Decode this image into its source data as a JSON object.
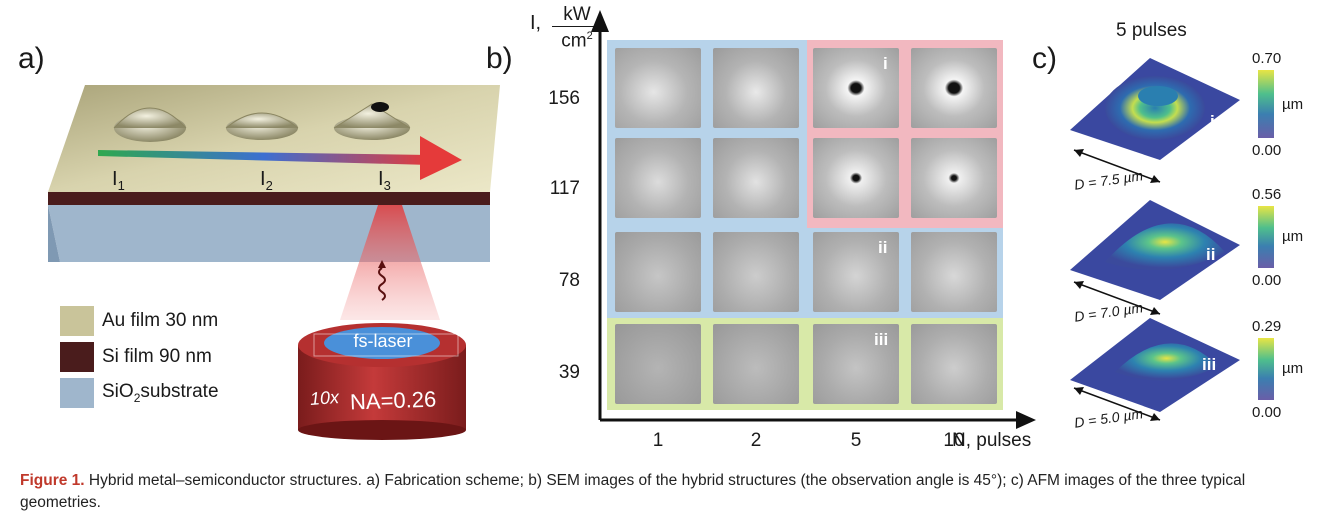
{
  "panel_a": {
    "label": "a)",
    "intensity_labels": [
      "I",
      "I",
      "I"
    ],
    "intensity_subs": [
      "1",
      "2",
      "3"
    ],
    "legend": [
      {
        "text": "Au film 30 nm",
        "color": "#c9c49a"
      },
      {
        "text": "Si film 90 nm",
        "color": "#4a1c1c"
      },
      {
        "text_main": "SiO",
        "text_sub": "2",
        "text_rest": "substrate",
        "color": "#9fb6cc"
      }
    ],
    "objective_top": "fs-laser",
    "objective_mag": "10x",
    "objective_na": "NA=0.26"
  },
  "panel_b": {
    "label": "b)",
    "y_axis_label_I": "I,",
    "y_axis_unit_num": "kW",
    "y_axis_unit_den": "cm",
    "y_axis_unit_exp": "2",
    "y_ticks": [
      "156",
      "117",
      "78",
      "39"
    ],
    "x_ticks": [
      "1",
      "2",
      "5",
      "10"
    ],
    "x_axis_label": "N, pulses",
    "region_colors": {
      "blue": "#b7d3ea",
      "pink": "#f2b8c0",
      "green": "#d8e9a8"
    },
    "markers": {
      "i": "i",
      "ii": "ii",
      "iii": "iii"
    }
  },
  "panel_c": {
    "label": "c)",
    "title": "5 pulses",
    "unit": "µm",
    "maps": [
      {
        "marker": "i",
        "max": "0.70",
        "min": "0.00",
        "diameter": "D = 7.5 µm"
      },
      {
        "marker": "ii",
        "max": "0.56",
        "min": "0.00",
        "diameter": "D = 7.0 µm"
      },
      {
        "marker": "iii",
        "max": "0.29",
        "min": "0.00",
        "diameter": "D = 5.0 µm"
      }
    ]
  },
  "caption": {
    "figure_label": "Figure 1.",
    "text": " Hybrid metal–semiconductor structures. a) Fabrication scheme; b) SEM images of the hybrid structures (the observation angle is 45°); c) AFM images of the three typical geometries."
  }
}
